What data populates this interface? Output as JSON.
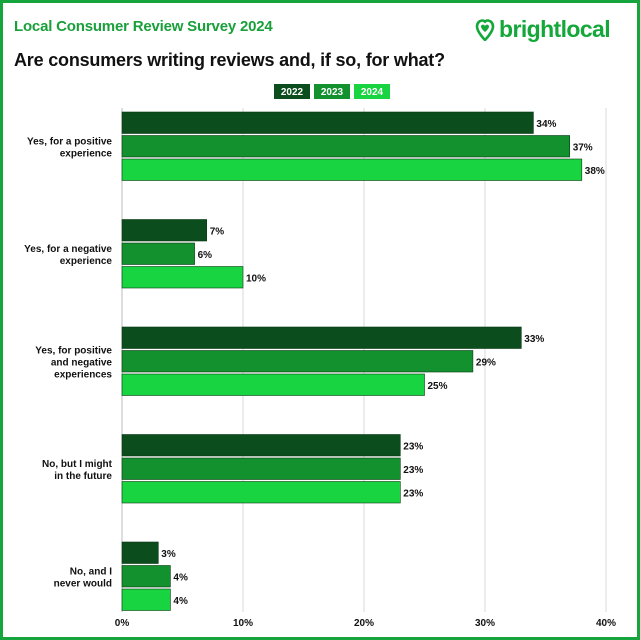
{
  "header": {
    "survey_title": "Local Consumer Review Survey 2024",
    "brand": "brightlocal"
  },
  "colors": {
    "border": "#15a53c",
    "title": "#1aa03a",
    "brand": "#14a83a",
    "grid": "#d9d9d9",
    "series": [
      "#0b4d1c",
      "#12912e",
      "#17d440"
    ]
  },
  "chart_data": {
    "type": "bar",
    "orientation": "horizontal",
    "title": "Are consumers writing reviews and, if so, for what?",
    "categories": [
      [
        "Yes, for a positive",
        "experience"
      ],
      [
        "Yes, for a negative",
        "experience"
      ],
      [
        "Yes, for positive",
        "and negative",
        "experiences"
      ],
      [
        "No, but I might",
        "in the future"
      ],
      [
        "No, and I",
        "never would"
      ]
    ],
    "series": [
      {
        "name": "2022",
        "values": [
          34,
          7,
          33,
          23,
          3
        ]
      },
      {
        "name": "2023",
        "values": [
          37,
          6,
          29,
          23,
          4
        ]
      },
      {
        "name": "2024",
        "values": [
          38,
          10,
          25,
          23,
          4
        ]
      }
    ],
    "xlim": [
      0,
      40
    ],
    "xticks": [
      0,
      10,
      20,
      30,
      40
    ],
    "tick_suffix": "%",
    "value_suffix": "%",
    "legend_position": "top-center",
    "grid": true
  }
}
